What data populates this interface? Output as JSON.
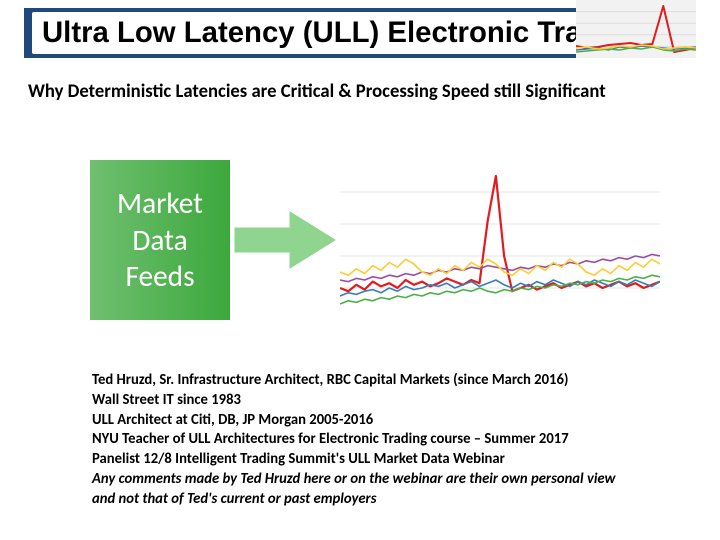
{
  "title": {
    "text": "Ultra Low Latency (ULL) Electronic Trading",
    "fontsize_pt": 22,
    "color": "#000000",
    "bar_bg": "#1f497d",
    "white_box_bg": "#ffffff"
  },
  "corner_chart": {
    "type": "line",
    "bg": "#f2f2f2",
    "grid_color": "#dddddd",
    "series": [
      {
        "color": "#e41a1c",
        "width": 2,
        "points": [
          12,
          10,
          11,
          13,
          14,
          15,
          13,
          14,
          52,
          6,
          8,
          10
        ]
      },
      {
        "color": "#377eb8",
        "width": 1.4,
        "points": [
          8,
          9,
          10,
          8,
          11,
          10,
          12,
          11,
          10,
          9,
          10,
          11
        ]
      },
      {
        "color": "#4daf4a",
        "width": 1.4,
        "points": [
          6,
          7,
          8,
          9,
          8,
          10,
          9,
          11,
          8,
          7,
          9,
          8
        ]
      },
      {
        "color": "#ffcc33",
        "width": 1.4,
        "points": [
          10,
          11,
          9,
          10,
          12,
          11,
          13,
          12,
          9,
          10,
          11,
          10
        ]
      }
    ],
    "ylim": [
      0,
      58
    ]
  },
  "subtitle": {
    "text": "Why Deterministic Latencies are Critical & Processing Speed still Significant",
    "fontsize_pt": 14
  },
  "feeds_box": {
    "bg_left": "#6fbf6f",
    "bg_right": "#3ca83c",
    "line1": "Market",
    "line2": "Data",
    "line3": "Feeds",
    "fontsize_pt": 22,
    "text_color": "#ffffff"
  },
  "arrow": {
    "color": "#8fd48f"
  },
  "main_chart": {
    "type": "line",
    "bg": "#ffffff",
    "grid_color": "#e6e6e6",
    "ylim": [
      0,
      100
    ],
    "xlim": [
      0,
      40
    ],
    "series": [
      {
        "color": "#e41a1c",
        "width": 2.2,
        "y": [
          20,
          18,
          22,
          19,
          24,
          21,
          23,
          20,
          25,
          22,
          24,
          21,
          23,
          26,
          24,
          22,
          25,
          23,
          62,
          90,
          40,
          18,
          20,
          22,
          19,
          21,
          23,
          20,
          22,
          24,
          21,
          23,
          20,
          22,
          24,
          21,
          23,
          20,
          22,
          24
        ]
      },
      {
        "color": "#377eb8",
        "width": 1.6,
        "y": [
          15,
          17,
          16,
          18,
          19,
          17,
          20,
          18,
          21,
          19,
          20,
          22,
          21,
          23,
          20,
          22,
          24,
          21,
          23,
          25,
          22,
          20,
          23,
          21,
          24,
          22,
          25,
          23,
          21,
          24,
          22,
          25,
          23,
          21,
          24,
          22,
          25,
          23,
          21,
          24
        ]
      },
      {
        "color": "#4daf4a",
        "width": 1.6,
        "y": [
          10,
          12,
          11,
          13,
          12,
          14,
          13,
          15,
          14,
          16,
          15,
          17,
          16,
          18,
          17,
          19,
          18,
          20,
          18,
          17,
          19,
          18,
          20,
          19,
          21,
          20,
          22,
          21,
          23,
          22,
          24,
          23,
          25,
          24,
          26,
          25,
          27,
          26,
          28,
          27
        ]
      },
      {
        "color": "#984ea3",
        "width": 1.6,
        "y": [
          25,
          24,
          26,
          25,
          27,
          26,
          28,
          27,
          29,
          28,
          30,
          29,
          31,
          30,
          32,
          31,
          33,
          32,
          34,
          33,
          32,
          31,
          33,
          32,
          34,
          33,
          35,
          34,
          36,
          35,
          37,
          36,
          38,
          37,
          39,
          38,
          40,
          39,
          41,
          40
        ]
      },
      {
        "color": "#ffcc33",
        "width": 1.6,
        "y": [
          30,
          28,
          32,
          29,
          34,
          31,
          36,
          33,
          38,
          35,
          30,
          28,
          32,
          29,
          34,
          31,
          36,
          33,
          38,
          35,
          30,
          28,
          32,
          29,
          34,
          31,
          36,
          33,
          38,
          35,
          30,
          28,
          32,
          29,
          34,
          31,
          36,
          33,
          38,
          35
        ]
      }
    ]
  },
  "bio": {
    "fontsize_pt": 11,
    "lines": [
      "Ted Hruzd, Sr. Infrastructure Architect, RBC Capital Markets (since March 2016)",
      "Wall Street IT since 1983",
      "ULL Architect at Citi, DB, JP Morgan 2005-2016",
      "NYU Teacher of ULL Architectures for Electronic Trading course – Summer 2017",
      "Panelist 12/8 Intelligent Trading Summit's ULL Market Data Webinar"
    ],
    "italic_line": "Any comments made by Ted Hruzd here or on the webinar are their own personal view and not that of Ted's current or past employers"
  }
}
